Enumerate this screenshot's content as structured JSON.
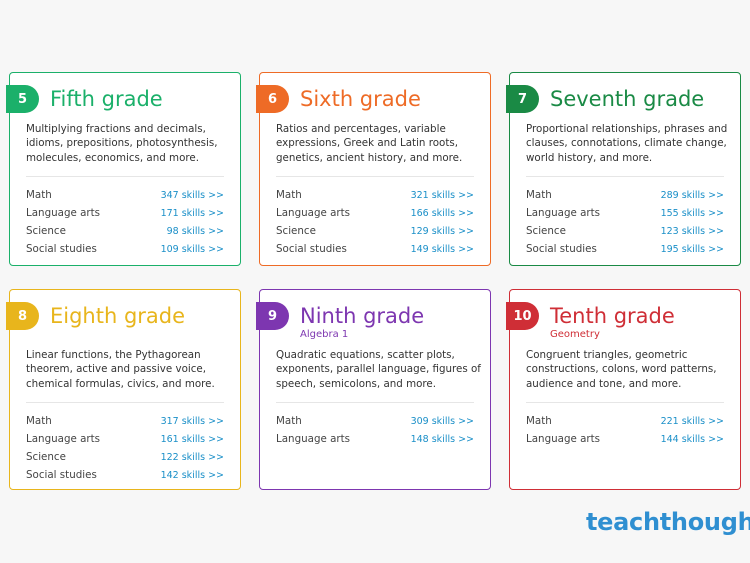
{
  "grades": [
    {
      "number": "5",
      "title": "Fifth grade",
      "subtitle": "",
      "color": "#1bb06a",
      "description": "Multiplying fractions and decimals, idioms, prepositions, photosynthesis, molecules, economics, and more.",
      "skills": [
        {
          "subject": "Math",
          "count": "347 skills >>"
        },
        {
          "subject": "Language arts",
          "count": "171 skills >>"
        },
        {
          "subject": "Science",
          "count": "98 skills >>"
        },
        {
          "subject": "Social studies",
          "count": "109 skills >>"
        }
      ]
    },
    {
      "number": "6",
      "title": "Sixth grade",
      "subtitle": "",
      "color": "#ee6b26",
      "description": "Ratios and percentages, variable expressions, Greek and Latin roots, genetics, ancient history, and more.",
      "skills": [
        {
          "subject": "Math",
          "count": "321 skills >>"
        },
        {
          "subject": "Language arts",
          "count": "166 skills >>"
        },
        {
          "subject": "Science",
          "count": "129 skills >>"
        },
        {
          "subject": "Social studies",
          "count": "149 skills >>"
        }
      ]
    },
    {
      "number": "7",
      "title": "Seventh grade",
      "subtitle": "",
      "color": "#1a8a45",
      "description": "Proportional relationships, phrases and clauses, connotations, climate change, world history, and more.",
      "skills": [
        {
          "subject": "Math",
          "count": "289 skills >>"
        },
        {
          "subject": "Language arts",
          "count": "155 skills >>"
        },
        {
          "subject": "Science",
          "count": "123 skills >>"
        },
        {
          "subject": "Social studies",
          "count": "195 skills >>"
        }
      ]
    },
    {
      "number": "8",
      "title": "Eighth grade",
      "subtitle": "",
      "color": "#e8b51c",
      "description": "Linear functions, the Pythagorean theorem, active and passive voice, chemical formulas, civics, and more.",
      "skills": [
        {
          "subject": "Math",
          "count": "317 skills >>"
        },
        {
          "subject": "Language arts",
          "count": "161 skills >>"
        },
        {
          "subject": "Science",
          "count": "122 skills >>"
        },
        {
          "subject": "Social studies",
          "count": "142 skills >>"
        }
      ]
    },
    {
      "number": "9",
      "title": "Ninth grade",
      "subtitle": "Algebra 1",
      "color": "#7d36b0",
      "description": "Quadratic equations, scatter plots, exponents, parallel language, figures of speech, semicolons, and more.",
      "skills": [
        {
          "subject": "Math",
          "count": "309 skills >>"
        },
        {
          "subject": "Language arts",
          "count": "148 skills >>"
        }
      ]
    },
    {
      "number": "10",
      "title": "Tenth grade",
      "subtitle": "Geometry",
      "color": "#cf2e36",
      "description": "Congruent triangles, geometric constructions, colons, word patterns, audience and tone, and more.",
      "skills": [
        {
          "subject": "Math",
          "count": "221 skills >>"
        },
        {
          "subject": "Language arts",
          "count": "144 skills >>"
        }
      ]
    }
  ],
  "logo": "teachthought"
}
